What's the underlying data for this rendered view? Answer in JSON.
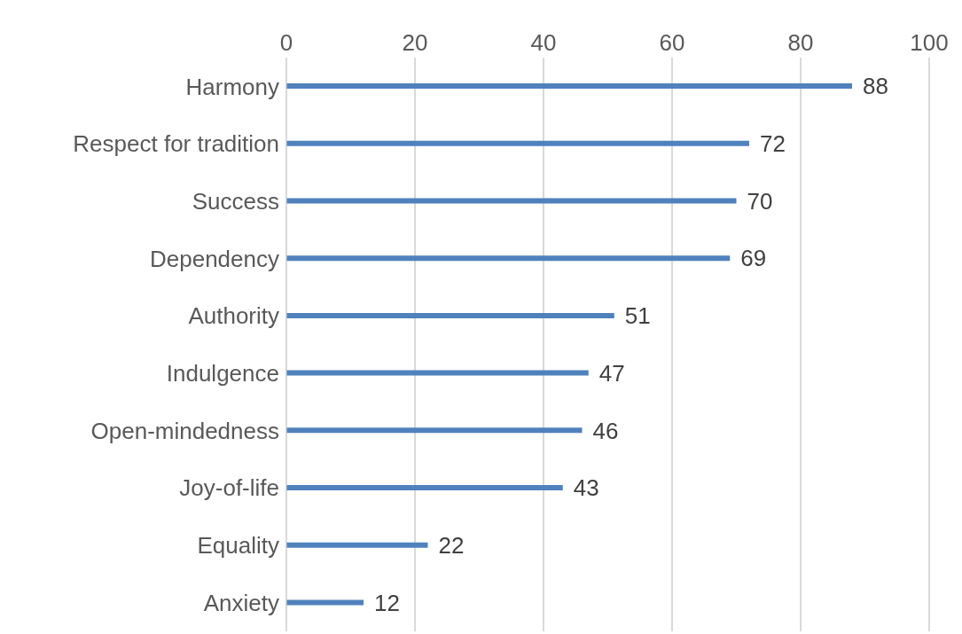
{
  "chart_data": {
    "type": "bar",
    "orientation": "horizontal",
    "categories": [
      "Harmony",
      "Respect for tradition",
      "Success",
      "Dependency",
      "Authority",
      "Indulgence",
      "Open-mindedness",
      "Joy-of-life",
      "Equality",
      "Anxiety"
    ],
    "values": [
      88,
      72,
      70,
      69,
      51,
      47,
      46,
      43,
      22,
      12
    ],
    "color": "#4f81bd",
    "xlim": [
      0,
      100
    ],
    "xticks": [
      0,
      20,
      40,
      60,
      80,
      100
    ],
    "grid": "x",
    "data_labels": true
  }
}
